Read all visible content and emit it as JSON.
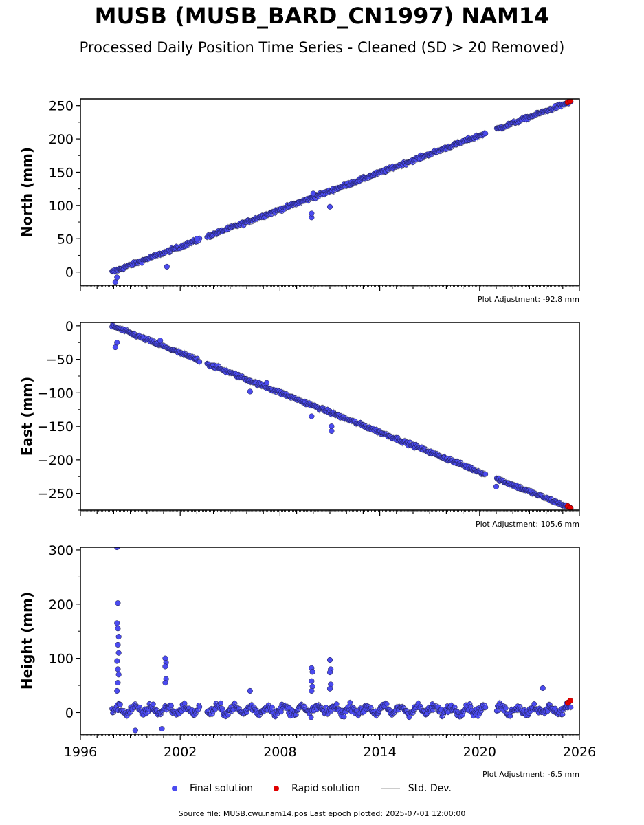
{
  "title": "MUSB (MUSB_BARD_CN1997) NAM14",
  "subtitle": "Processed Daily Position Time Series - Cleaned (SD > 20 Removed)",
  "legend": {
    "final": "Final solution",
    "rapid": "Rapid solution",
    "std": "Std. Dev."
  },
  "footer": "Source file: MUSB.cwu.nam14.pos  Last epoch plotted: 2025-07-01 12:00:00",
  "colors": {
    "final": "#4b4bf0",
    "rapid": "#e00000",
    "edge": "#1a1a40",
    "std": "#cccccc"
  },
  "chart_data": [
    {
      "type": "scatter",
      "ylabel": "North (mm)",
      "xlim": [
        1996,
        2026
      ],
      "ylim": [
        -20,
        260
      ],
      "yticks": [
        0,
        50,
        100,
        150,
        200,
        250
      ],
      "adjustment": "Plot Adjustment: -92.8 mm",
      "show_xtick_labels": false,
      "trend": {
        "start_year": 1997.9,
        "end_year": 2025.5,
        "start_value": 0,
        "end_value": 256
      },
      "gaps": [
        [
          2003.2,
          2003.6
        ],
        [
          2020.4,
          2021.0
        ]
      ],
      "outliers": [
        {
          "x": 1998.1,
          "y": -15
        },
        {
          "x": 1998.2,
          "y": -8
        },
        {
          "x": 2001.2,
          "y": 8
        },
        {
          "x": 2009.9,
          "y": 82
        },
        {
          "x": 2009.9,
          "y": 88
        },
        {
          "x": 2010.0,
          "y": 118
        },
        {
          "x": 2011.0,
          "y": 98
        },
        {
          "x": 2003.0,
          "y": 50
        }
      ],
      "rapid": [
        {
          "x": 2025.3,
          "y": 255
        },
        {
          "x": 2025.45,
          "y": 257
        }
      ]
    },
    {
      "type": "scatter",
      "ylabel": "East (mm)",
      "xlim": [
        1996,
        2026
      ],
      "ylim": [
        -275,
        5
      ],
      "yticks": [
        0,
        -50,
        -100,
        -150,
        -200,
        -250
      ],
      "adjustment": "Plot Adjustment: 105.6 mm",
      "show_xtick_labels": false,
      "trend": {
        "start_year": 1997.9,
        "end_year": 2025.5,
        "start_value": 0,
        "end_value": -272
      },
      "gaps": [
        [
          2003.2,
          2003.6
        ],
        [
          2020.4,
          2021.0
        ]
      ],
      "outliers": [
        {
          "x": 1998.1,
          "y": -32
        },
        {
          "x": 1998.2,
          "y": -25
        },
        {
          "x": 2000.8,
          "y": -22
        },
        {
          "x": 2006.2,
          "y": -98
        },
        {
          "x": 2007.2,
          "y": -85
        },
        {
          "x": 2009.9,
          "y": -135
        },
        {
          "x": 2011.1,
          "y": -150
        },
        {
          "x": 2011.1,
          "y": -157
        },
        {
          "x": 2021.0,
          "y": -240
        }
      ],
      "rapid": [
        {
          "x": 2025.3,
          "y": -269
        },
        {
          "x": 2025.45,
          "y": -272
        }
      ]
    },
    {
      "type": "scatter",
      "ylabel": "Height (mm)",
      "xlim": [
        1996,
        2026
      ],
      "ylim": [
        -40,
        305
      ],
      "yticks": [
        0,
        100,
        200,
        300
      ],
      "xticks": [
        1996,
        2002,
        2008,
        2014,
        2020,
        2026
      ],
      "adjustment": "Plot Adjustment: -6.5 mm",
      "show_xtick_labels": true,
      "trend": {
        "start_year": 1997.9,
        "end_year": 2025.5,
        "start_value": 5,
        "end_value": 15
      },
      "gaps": [
        [
          2003.2,
          2003.6
        ],
        [
          2020.4,
          2021.0
        ]
      ],
      "outliers": [
        {
          "x": 1998.2,
          "y": 305
        },
        {
          "x": 1998.25,
          "y": 202
        },
        {
          "x": 1998.2,
          "y": 165
        },
        {
          "x": 1998.25,
          "y": 155
        },
        {
          "x": 1998.3,
          "y": 140
        },
        {
          "x": 1998.25,
          "y": 125
        },
        {
          "x": 1998.3,
          "y": 110
        },
        {
          "x": 1998.2,
          "y": 95
        },
        {
          "x": 1998.25,
          "y": 80
        },
        {
          "x": 1998.3,
          "y": 70
        },
        {
          "x": 1998.25,
          "y": 55
        },
        {
          "x": 1998.2,
          "y": 40
        },
        {
          "x": 2001.1,
          "y": 100
        },
        {
          "x": 2001.15,
          "y": 92
        },
        {
          "x": 2001.1,
          "y": 85
        },
        {
          "x": 2001.15,
          "y": 62
        },
        {
          "x": 2001.1,
          "y": 55
        },
        {
          "x": 2006.2,
          "y": 40
        },
        {
          "x": 2009.9,
          "y": 82
        },
        {
          "x": 2009.95,
          "y": 75
        },
        {
          "x": 2009.9,
          "y": 58
        },
        {
          "x": 2009.95,
          "y": 48
        },
        {
          "x": 2009.9,
          "y": 40
        },
        {
          "x": 2011.0,
          "y": 97
        },
        {
          "x": 2011.05,
          "y": 80
        },
        {
          "x": 2011.0,
          "y": 74
        },
        {
          "x": 2011.05,
          "y": 52
        },
        {
          "x": 2011.0,
          "y": 44
        },
        {
          "x": 1999.3,
          "y": -33
        },
        {
          "x": 2000.9,
          "y": -30
        },
        {
          "x": 2023.8,
          "y": 45
        }
      ],
      "rapid": [
        {
          "x": 2025.3,
          "y": 18
        },
        {
          "x": 2025.45,
          "y": 22
        }
      ]
    }
  ]
}
